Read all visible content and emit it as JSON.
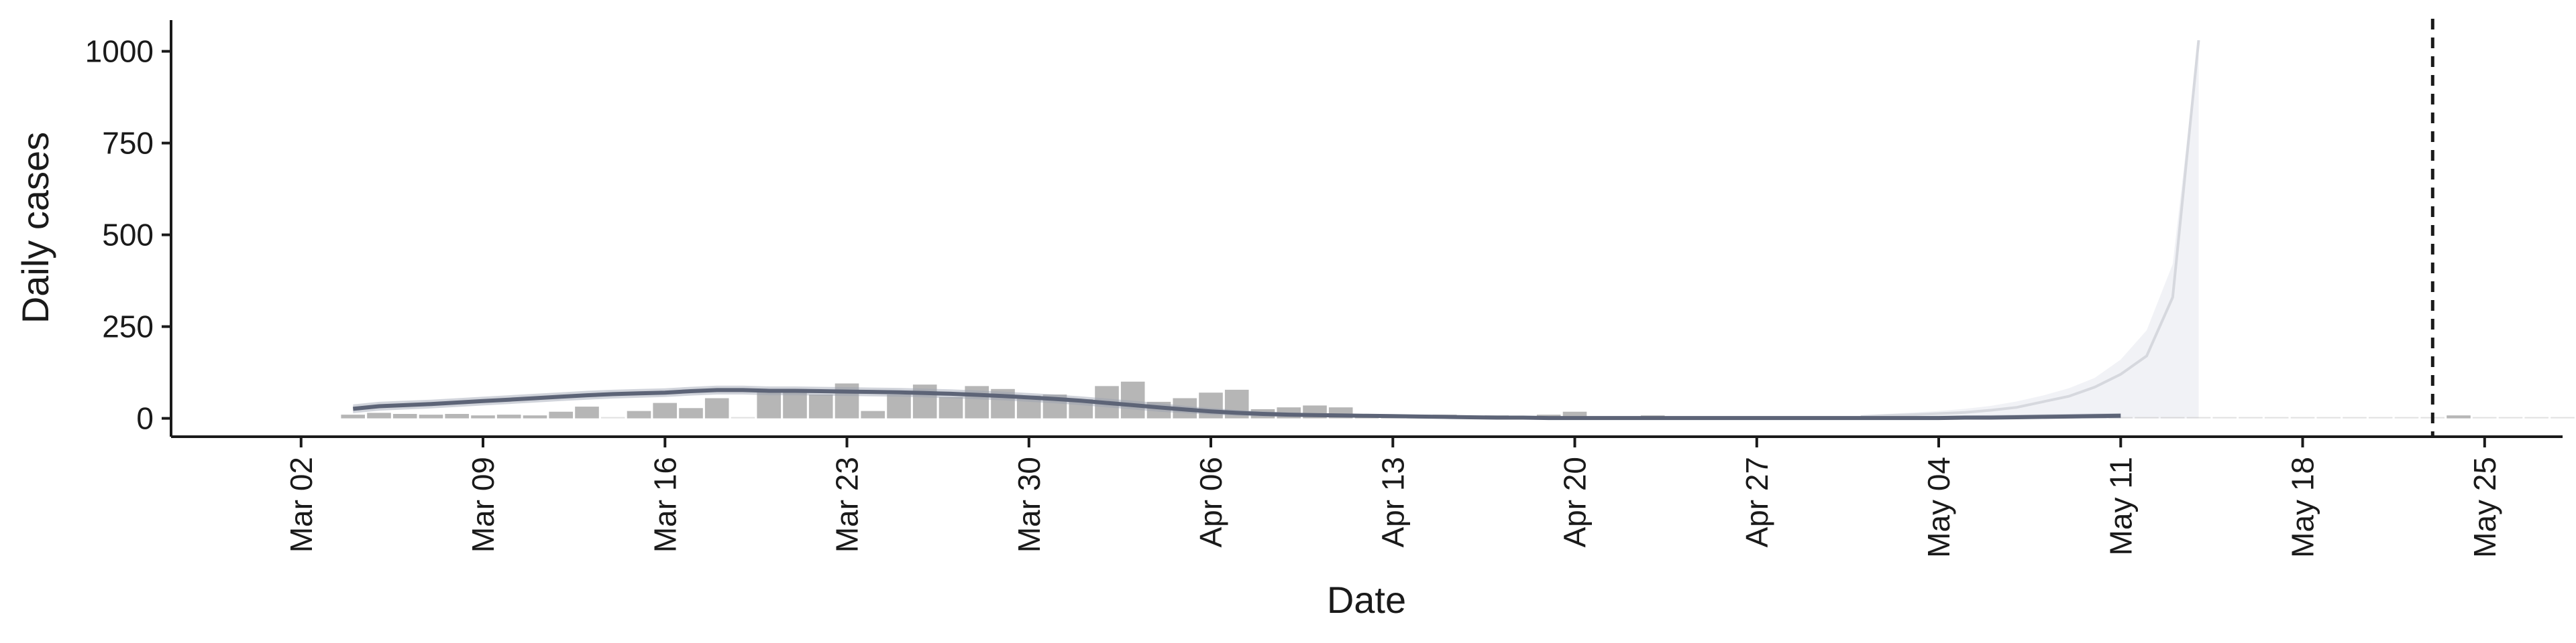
{
  "chart_data": {
    "type": "bar",
    "xlabel": "Date",
    "ylabel": "Daily cases",
    "x_range": [
      "2020-02-26",
      "2020-05-28"
    ],
    "ylim": [
      -50,
      1085
    ],
    "grid": false,
    "legend": "none",
    "y_ticks": [
      {
        "value": 0,
        "label": "0"
      },
      {
        "value": 250,
        "label": "250"
      },
      {
        "value": 500,
        "label": "500"
      },
      {
        "value": 750,
        "label": "750"
      },
      {
        "value": 1000,
        "label": "1000"
      }
    ],
    "x_ticks": [
      {
        "date": "2020-03-02",
        "label": "Mar 02"
      },
      {
        "date": "2020-03-09",
        "label": "Mar 09"
      },
      {
        "date": "2020-03-16",
        "label": "Mar 16"
      },
      {
        "date": "2020-03-23",
        "label": "Mar 23"
      },
      {
        "date": "2020-03-30",
        "label": "Mar 30"
      },
      {
        "date": "2020-04-06",
        "label": "Apr 06"
      },
      {
        "date": "2020-04-13",
        "label": "Apr 13"
      },
      {
        "date": "2020-04-20",
        "label": "Apr 20"
      },
      {
        "date": "2020-04-27",
        "label": "Apr 27"
      },
      {
        "date": "2020-05-04",
        "label": "May 04"
      },
      {
        "date": "2020-05-11",
        "label": "May 11"
      },
      {
        "date": "2020-05-18",
        "label": "May 18"
      },
      {
        "date": "2020-05-25",
        "label": "May 25"
      }
    ],
    "cases": {
      "start_date": "2020-03-04",
      "values": [
        10,
        15,
        12,
        10,
        12,
        8,
        10,
        8,
        18,
        32,
        0,
        20,
        42,
        28,
        55,
        0,
        78,
        80,
        65,
        95,
        20,
        65,
        92,
        58,
        88,
        80,
        62,
        65,
        52,
        88,
        100,
        45,
        55,
        70,
        78,
        25,
        30,
        35,
        30,
        8,
        10,
        8,
        10,
        5,
        8,
        5,
        10,
        18,
        5,
        0,
        8,
        0,
        5,
        0,
        0,
        5,
        0,
        0,
        0,
        0,
        0,
        0,
        0,
        0,
        0,
        0,
        0,
        0,
        0,
        0,
        0,
        0,
        0,
        0,
        0,
        0,
        0,
        0,
        0,
        0,
        0,
        8,
        0,
        0,
        0,
        0,
        0,
        0,
        0,
        5,
        0
      ],
      "color": "#a9a9a9"
    },
    "fit": {
      "start_date": "2020-03-04",
      "mean": [
        26,
        33,
        36,
        39,
        43,
        47,
        51,
        55,
        59,
        63,
        66,
        68,
        70,
        74,
        77,
        77,
        75,
        75,
        74,
        73,
        72,
        71,
        69,
        67,
        64,
        61,
        57,
        53,
        48,
        42,
        36,
        30,
        24,
        19,
        15,
        12,
        10,
        9,
        8,
        7,
        6,
        5,
        4,
        3,
        2,
        2,
        1,
        1,
        1,
        1,
        1,
        1,
        1,
        1,
        1,
        1,
        1,
        1,
        1,
        1,
        1,
        1,
        2,
        2,
        3,
        4,
        5,
        6,
        7
      ],
      "lower": [
        14,
        21,
        24,
        27,
        31,
        35,
        39,
        43,
        47,
        51,
        54,
        56,
        58,
        62,
        65,
        65,
        63,
        63,
        62,
        61,
        60,
        59,
        57,
        55,
        52,
        49,
        45,
        41,
        36,
        30,
        24,
        18,
        14,
        10,
        7,
        5,
        4,
        3,
        2,
        2,
        1,
        1,
        0,
        0,
        0,
        0,
        0,
        0,
        0,
        0,
        0,
        0,
        0,
        0,
        0,
        0,
        0,
        0,
        0,
        0,
        0,
        0,
        0,
        0,
        0,
        0,
        0,
        0,
        0
      ],
      "upper": [
        38,
        45,
        48,
        51,
        55,
        59,
        63,
        67,
        71,
        75,
        78,
        80,
        82,
        86,
        89,
        89,
        87,
        87,
        86,
        85,
        84,
        83,
        81,
        79,
        76,
        73,
        69,
        65,
        60,
        54,
        48,
        42,
        34,
        28,
        23,
        19,
        16,
        14,
        12,
        11,
        10,
        9,
        8,
        7,
        6,
        5,
        4,
        4,
        3,
        3,
        3,
        3,
        3,
        3,
        3,
        3,
        3,
        4,
        4,
        5,
        6,
        7,
        8,
        9,
        10,
        11,
        12,
        13,
        14
      ],
      "color": "#5d6477"
    },
    "forecast": {
      "start_date": "2020-05-01",
      "median": [
        5,
        8,
        10,
        13,
        16,
        22,
        30,
        45,
        60,
        85,
        120,
        170,
        330,
        1030
      ],
      "upper": [
        8,
        12,
        16,
        20,
        26,
        34,
        46,
        62,
        82,
        110,
        160,
        240,
        420,
        1030
      ],
      "lower": [
        0,
        0,
        0,
        0,
        0,
        0,
        0,
        0,
        0,
        0,
        0,
        0,
        0,
        0
      ],
      "fill_color": "#eef0f5",
      "line_color": "#d6d8de"
    },
    "vline": {
      "date": "2020-05-23",
      "style": "dashed"
    }
  }
}
